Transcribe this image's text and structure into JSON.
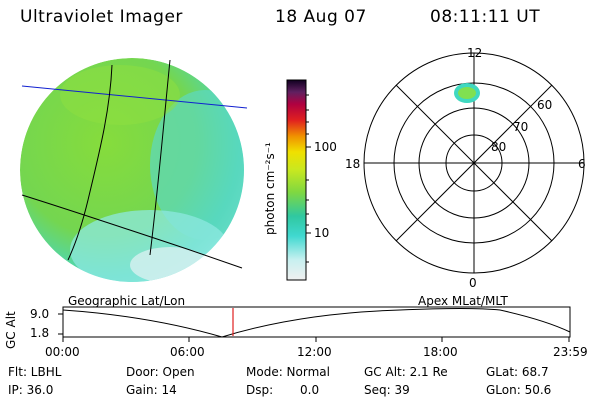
{
  "header": {
    "title": "Ultraviolet Imager",
    "date": "18 Aug 07",
    "time": "08:11:11 UT"
  },
  "colorbar": {
    "label": "photon cm⁻²s⁻¹",
    "ticks": [
      "100",
      "10"
    ]
  },
  "polar_plot": {
    "mlt_labels": [
      "12",
      "18",
      "6",
      "0"
    ],
    "mlat_labels": [
      "60",
      "70",
      "80"
    ]
  },
  "timeline": {
    "left_title": "Geographic Lat/Lon",
    "right_title": "Apex  MLat/MLT",
    "axis_label": "GC Alt",
    "y_ticks": [
      "9.0",
      "1.8"
    ],
    "x_ticks": [
      "00:00",
      "06:00",
      "12:00",
      "18:00",
      "23:59"
    ],
    "marker_time": "08:11:11"
  },
  "info": {
    "flt": "Flt: LBHL",
    "ip": "IP: 36.0",
    "door": "Door: Open",
    "gain": "Gain: 14",
    "mode": "Mode: Normal",
    "dsp_label": "Dsp:",
    "dsp_value": "0.0",
    "gc_alt": "GC Alt: 2.1 Re",
    "seq": "Seq: 39",
    "glat": "GLat: 68.7",
    "glon": "GLon:  50.6"
  },
  "colors": {
    "marker": "#e02020",
    "geo_line": "#1020d0"
  }
}
